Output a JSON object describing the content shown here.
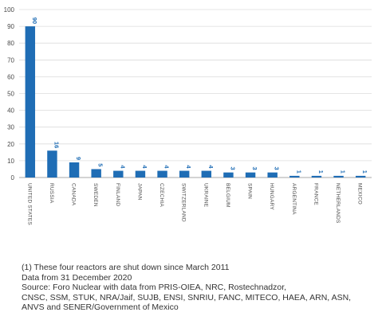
{
  "chart_data": {
    "type": "bar",
    "categories": [
      "UNITED STATES",
      "RUSSIA",
      "CANADA",
      "SWEDEN",
      "FINLAND",
      "JAPAN",
      "CZECHIA",
      "SWITZERLAND",
      "UKRAINE",
      "BELGIUM",
      "SPAIN",
      "HUNGARY",
      "ARGENTINA",
      "FRANCE",
      "NETHERLANDS",
      "MEXICO"
    ],
    "values": [
      90,
      16,
      9,
      5,
      4,
      4,
      4,
      4,
      4,
      3,
      3,
      3,
      1,
      1,
      1,
      1
    ],
    "data_labels": [
      "90",
      "16",
      "9",
      "5",
      "4",
      "4",
      "4",
      "4",
      "4",
      "3",
      "3",
      "3",
      "1",
      "1",
      "1",
      "1"
    ],
    "ylim": [
      0,
      100
    ],
    "yticks": [
      "0",
      "10",
      "20",
      "30",
      "40",
      "50",
      "60",
      "70",
      "80",
      "90",
      "100"
    ],
    "ytick_values": [
      0,
      10,
      20,
      30,
      40,
      50,
      60,
      70,
      80,
      90,
      100
    ],
    "grid": "horizontal",
    "bar_color": "#1f6db5",
    "label_color": "#1f6db5",
    "title": "",
    "xlabel": "",
    "ylabel": ""
  },
  "notes": {
    "line1": "(1) These four reactors are shut down since March 2011",
    "line2": "Data from 31 December 2020",
    "line3": "Source: Foro Nuclear with data from PRIS-OIEA, NRC, Rostechnadzor,",
    "line4": "CNSC, SSM, STUK, NRA/Jaif, SUJB, ENSI, SNRIU, FANC, MITECO, HAEA, ARN, ASN,",
    "line5": "ANVS and SENER/Government of Mexico"
  }
}
